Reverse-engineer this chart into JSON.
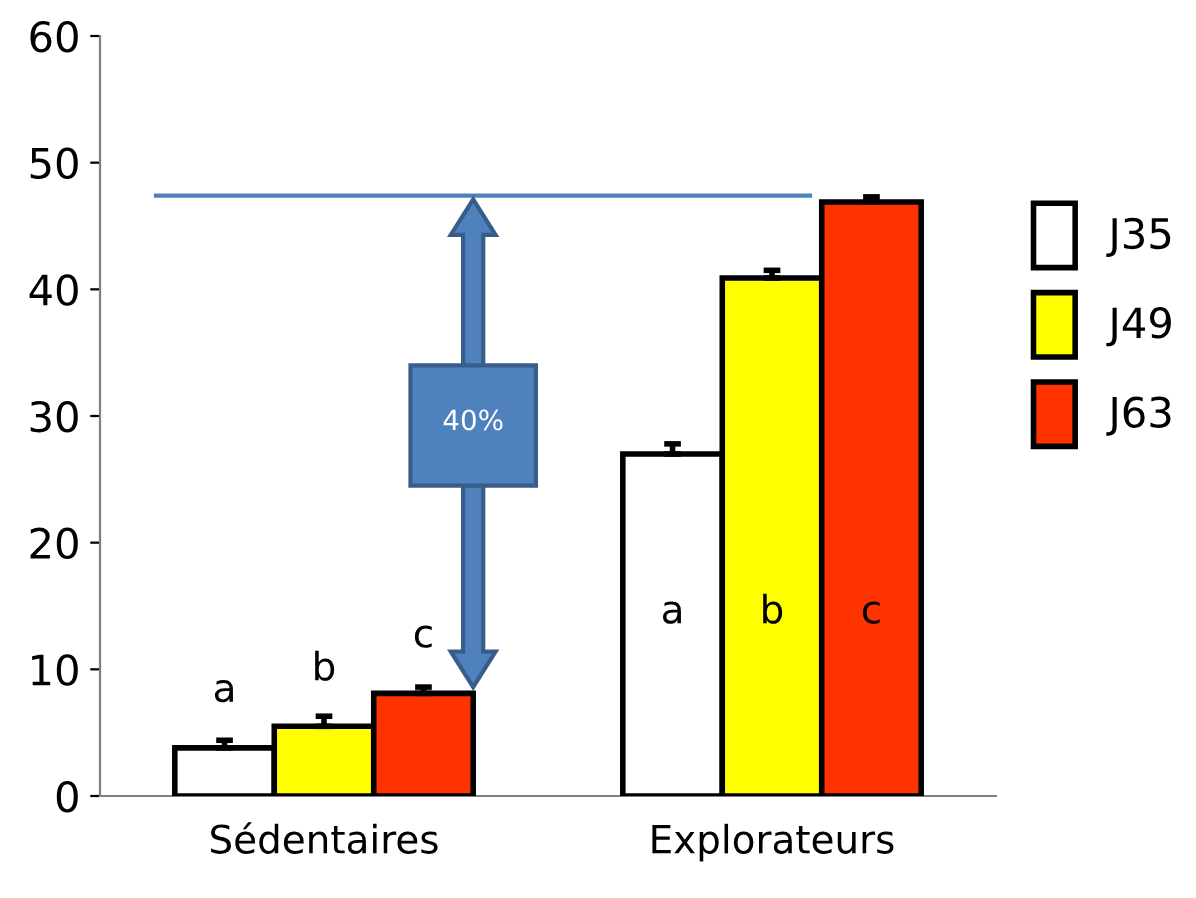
{
  "chart_data": {
    "type": "bar",
    "categories": [
      "Sédentaires",
      "Explorateurs"
    ],
    "series": [
      {
        "name": "J35",
        "color": "#ffffff",
        "values": [
          3.8,
          27
        ],
        "errors": [
          0.6,
          0.8
        ],
        "value_labels": [
          "a",
          "a"
        ]
      },
      {
        "name": "J49",
        "color": "#ffff00",
        "values": [
          5.5,
          40.9
        ],
        "errors": [
          0.8,
          0.6
        ],
        "value_labels": [
          "b",
          "b"
        ]
      },
      {
        "name": "J63",
        "color": "#ff3300",
        "values": [
          8.1,
          46.9
        ],
        "errors": [
          0.5,
          0.4
        ],
        "value_labels": [
          "c",
          "c"
        ]
      }
    ],
    "ylim": [
      0,
      60
    ],
    "yticks": [
      0,
      10,
      20,
      30,
      40,
      50,
      60
    ],
    "ref_lines": [
      {
        "axis": "y",
        "value": 47.4,
        "color": "#4f81bd"
      }
    ],
    "annotations": [
      "40%"
    ],
    "grid": false,
    "legend": "right"
  }
}
